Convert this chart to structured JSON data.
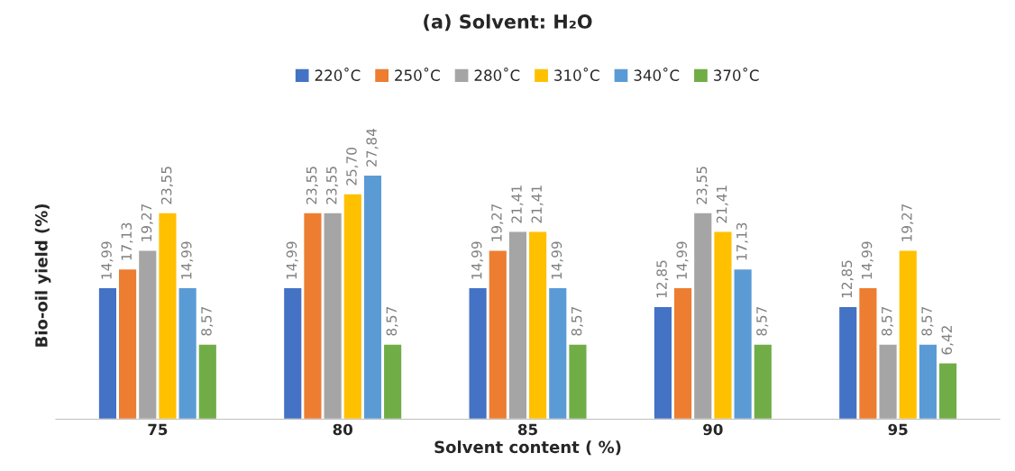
{
  "chart_data": {
    "type": "bar",
    "title": "(a) Solvent: H₂O",
    "xlabel": "Solvent content ( %)",
    "ylabel": "Bio-oil yield (%)",
    "categories": [
      "75",
      "80",
      "85",
      "90",
      "95"
    ],
    "series": [
      {
        "name": "220˚C",
        "color": "#4472c4",
        "values": [
          14.99,
          14.99,
          14.99,
          12.85,
          12.85
        ],
        "value_labels": [
          "14,99",
          "14,99",
          "14,99",
          "12,85",
          "12,85"
        ]
      },
      {
        "name": "250˚C",
        "color": "#ed7d31",
        "values": [
          17.13,
          23.55,
          19.27,
          14.99,
          14.99
        ],
        "value_labels": [
          "17,13",
          "23,55",
          "19,27",
          "14,99",
          "14,99"
        ]
      },
      {
        "name": "280˚C",
        "color": "#a5a5a5",
        "values": [
          19.27,
          23.55,
          21.41,
          23.55,
          8.57
        ],
        "value_labels": [
          "19,27",
          "23,55",
          "21,41",
          "23,55",
          "8,57"
        ]
      },
      {
        "name": "310˚C",
        "color": "#ffc000",
        "values": [
          23.55,
          25.7,
          21.41,
          21.41,
          19.27
        ],
        "value_labels": [
          "23,55",
          "25,70",
          "21,41",
          "21,41",
          "19,27"
        ]
      },
      {
        "name": "340˚C",
        "color": "#5b9bd5",
        "values": [
          14.99,
          27.84,
          14.99,
          17.13,
          8.57
        ],
        "value_labels": [
          "14,99",
          "27,84",
          "14,99",
          "17,13",
          "8,57"
        ]
      },
      {
        "name": "370˚C",
        "color": "#70ad47",
        "values": [
          8.57,
          8.57,
          8.57,
          8.57,
          6.42
        ],
        "value_labels": [
          "8,57",
          "8,57",
          "8,57",
          "8,57",
          "6,42"
        ]
      }
    ],
    "legend": "top",
    "tick_labels": "x",
    "grid": false
  }
}
